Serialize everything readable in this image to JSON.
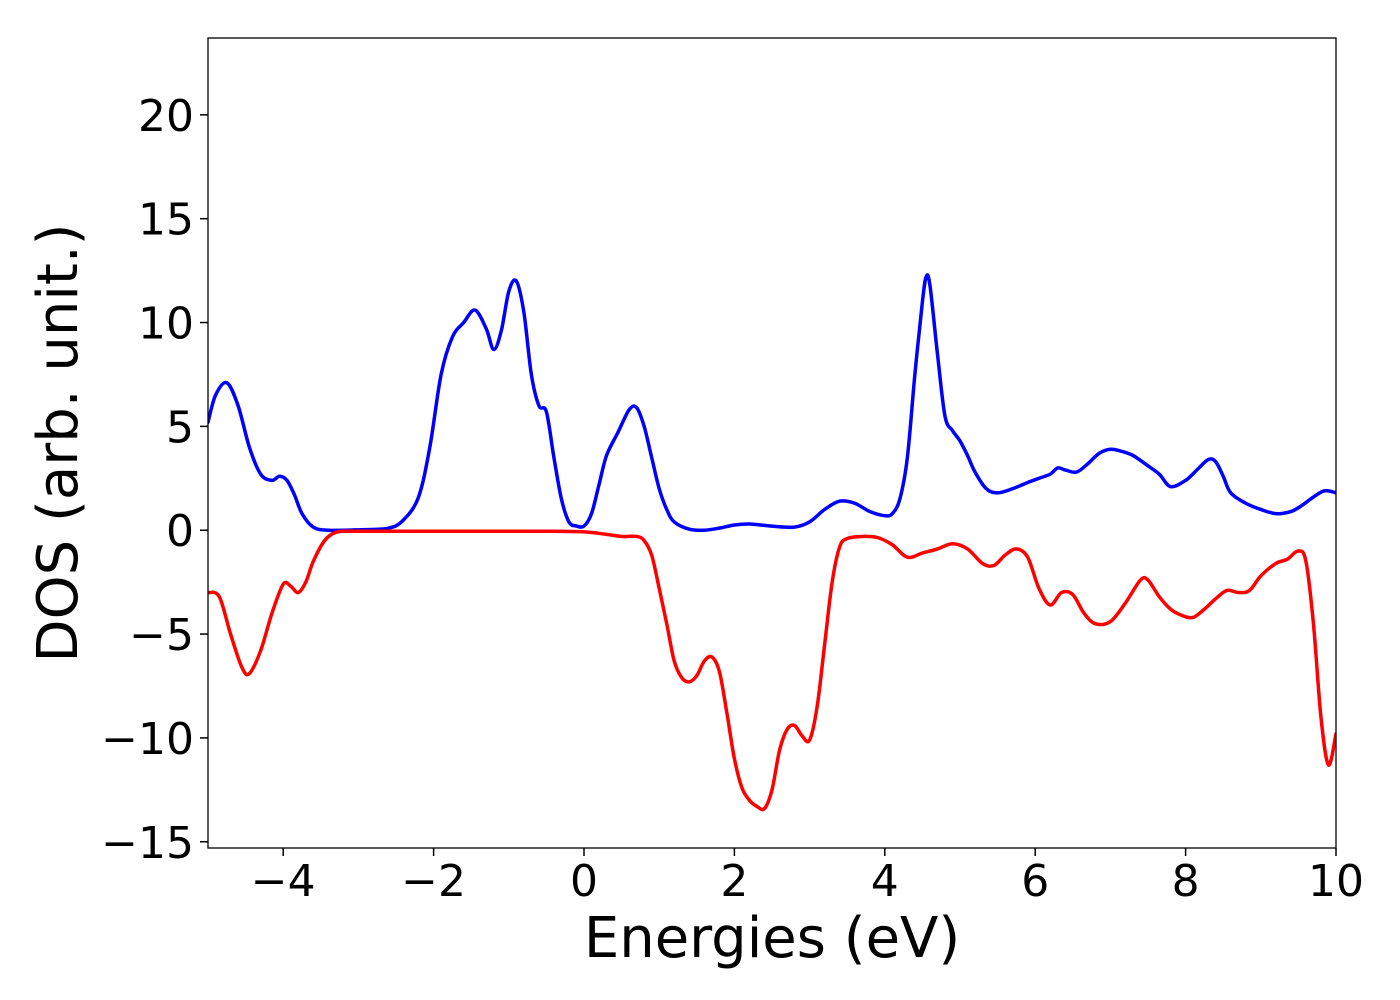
{
  "chart_data": {
    "type": "line",
    "title": "",
    "xlabel": "Energies (eV)",
    "ylabel": "DOS (arb. unit.)",
    "xlim": [
      -5,
      10
    ],
    "ylim": [
      -15.3,
      23.7
    ],
    "xticks": [
      -4,
      -2,
      0,
      2,
      4,
      6,
      8,
      10
    ],
    "xtick_labels": [
      "−4",
      "−2",
      "0",
      "2",
      "4",
      "6",
      "8",
      "10"
    ],
    "yticks": [
      -15,
      -10,
      -5,
      0,
      5,
      10,
      15,
      20
    ],
    "ytick_labels": [
      "−15",
      "−10",
      "−5",
      "0",
      "5",
      "10",
      "15",
      "20"
    ],
    "grid": false,
    "series": [
      {
        "color": "#0000ff",
        "x": [
          -5.0,
          -4.9,
          -4.75,
          -4.6,
          -4.45,
          -4.3,
          -4.15,
          -4.05,
          -3.95,
          -3.85,
          -3.75,
          -3.6,
          -3.4,
          -3.0,
          -2.6,
          -2.4,
          -2.2,
          -2.05,
          -1.9,
          -1.75,
          -1.6,
          -1.45,
          -1.3,
          -1.2,
          -1.1,
          -1.0,
          -0.9,
          -0.8,
          -0.7,
          -0.6,
          -0.5,
          -0.4,
          -0.3,
          -0.2,
          -0.1,
          0.0,
          0.1,
          0.2,
          0.3,
          0.45,
          0.6,
          0.7,
          0.8,
          0.9,
          1.0,
          1.1,
          1.2,
          1.4,
          1.6,
          1.8,
          2.0,
          2.2,
          2.5,
          2.8,
          3.0,
          3.2,
          3.4,
          3.6,
          3.8,
          4.0,
          4.1,
          4.2,
          4.3,
          4.4,
          4.5,
          4.55,
          4.6,
          4.7,
          4.8,
          4.9,
          5.0,
          5.1,
          5.2,
          5.35,
          5.5,
          5.7,
          5.9,
          6.05,
          6.2,
          6.3,
          6.4,
          6.55,
          6.7,
          6.85,
          7.0,
          7.15,
          7.3,
          7.5,
          7.65,
          7.8,
          8.0,
          8.15,
          8.3,
          8.4,
          8.5,
          8.6,
          8.8,
          9.0,
          9.2,
          9.4,
          9.55,
          9.7,
          9.85,
          10.0
        ],
        "values": [
          5.2,
          6.5,
          7.1,
          6.0,
          4.0,
          2.7,
          2.4,
          2.6,
          2.4,
          1.7,
          0.8,
          0.15,
          0.0,
          0.02,
          0.1,
          0.5,
          1.6,
          4.0,
          7.5,
          9.3,
          10.0,
          10.6,
          9.7,
          8.7,
          9.6,
          11.5,
          12.0,
          10.5,
          7.5,
          6.0,
          5.7,
          3.5,
          1.5,
          0.4,
          0.2,
          0.2,
          0.8,
          2.2,
          3.6,
          4.7,
          5.8,
          5.9,
          5.0,
          3.5,
          2.0,
          1.0,
          0.4,
          0.05,
          0.0,
          0.1,
          0.25,
          0.3,
          0.2,
          0.15,
          0.4,
          1.0,
          1.4,
          1.3,
          0.9,
          0.7,
          0.8,
          1.5,
          3.5,
          7.5,
          11.0,
          12.2,
          11.8,
          8.5,
          5.5,
          4.8,
          4.3,
          3.6,
          2.8,
          2.0,
          1.8,
          2.0,
          2.3,
          2.5,
          2.7,
          3.0,
          2.9,
          2.8,
          3.2,
          3.7,
          3.9,
          3.8,
          3.6,
          3.1,
          2.7,
          2.1,
          2.4,
          2.9,
          3.4,
          3.3,
          2.6,
          1.8,
          1.3,
          1.0,
          0.8,
          0.9,
          1.2,
          1.6,
          1.9,
          1.8
        ]
      },
      {
        "color": "#ff0000",
        "x": [
          -5.0,
          -4.85,
          -4.7,
          -4.55,
          -4.45,
          -4.3,
          -4.15,
          -4.0,
          -3.9,
          -3.8,
          -3.7,
          -3.6,
          -3.45,
          -3.3,
          -3.1,
          -2.5,
          -1.5,
          -0.5,
          0.0,
          0.3,
          0.5,
          0.7,
          0.8,
          0.9,
          1.0,
          1.1,
          1.2,
          1.3,
          1.4,
          1.5,
          1.6,
          1.7,
          1.8,
          1.9,
          2.0,
          2.1,
          2.2,
          2.3,
          2.4,
          2.5,
          2.6,
          2.7,
          2.8,
          2.9,
          3.0,
          3.1,
          3.2,
          3.3,
          3.4,
          3.5,
          3.7,
          3.9,
          4.1,
          4.3,
          4.5,
          4.7,
          4.9,
          5.1,
          5.3,
          5.45,
          5.6,
          5.75,
          5.9,
          6.05,
          6.2,
          6.35,
          6.5,
          6.65,
          6.8,
          7.0,
          7.2,
          7.4,
          7.5,
          7.65,
          7.8,
          7.95,
          8.1,
          8.25,
          8.4,
          8.55,
          8.7,
          8.85,
          9.0,
          9.2,
          9.35,
          9.5,
          9.6,
          9.7,
          9.8,
          9.9,
          10.0
        ],
        "values": [
          -3.0,
          -3.2,
          -5.0,
          -6.6,
          -6.9,
          -5.8,
          -4.0,
          -2.6,
          -2.7,
          -3.0,
          -2.5,
          -1.5,
          -0.5,
          -0.1,
          -0.05,
          -0.05,
          -0.05,
          -0.05,
          -0.08,
          -0.2,
          -0.3,
          -0.3,
          -0.5,
          -1.2,
          -2.8,
          -4.5,
          -6.3,
          -7.1,
          -7.3,
          -7.0,
          -6.3,
          -6.1,
          -6.8,
          -8.8,
          -11.0,
          -12.4,
          -13.0,
          -13.3,
          -13.4,
          -12.5,
          -10.6,
          -9.6,
          -9.4,
          -9.9,
          -10.1,
          -8.5,
          -5.5,
          -2.5,
          -0.8,
          -0.4,
          -0.3,
          -0.35,
          -0.7,
          -1.3,
          -1.1,
          -0.9,
          -0.65,
          -0.9,
          -1.6,
          -1.7,
          -1.2,
          -0.9,
          -1.3,
          -2.8,
          -3.6,
          -3.0,
          -3.1,
          -4.0,
          -4.5,
          -4.4,
          -3.5,
          -2.4,
          -2.4,
          -3.2,
          -3.8,
          -4.1,
          -4.2,
          -3.8,
          -3.3,
          -2.9,
          -3.0,
          -2.9,
          -2.2,
          -1.6,
          -1.4,
          -1.0,
          -1.5,
          -4.5,
          -9.0,
          -11.3,
          -9.8
        ]
      }
    ]
  }
}
